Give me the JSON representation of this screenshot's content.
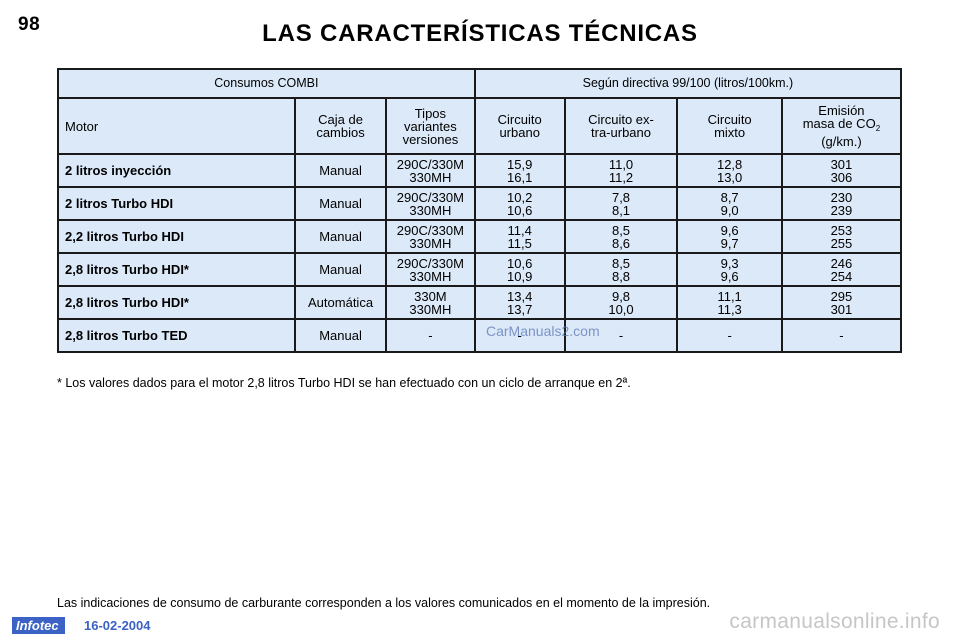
{
  "page": {
    "number": "98",
    "title": "LAS CARACTERÍSTICAS TÉCNICAS"
  },
  "table": {
    "group_left": "Consumos COMBI",
    "group_right": "Según directiva 99/100 (litros/100km.)",
    "columns": {
      "motor": "Motor",
      "caja": "Caja de\ncambios",
      "tipos": "Tipos\nvariantes\nversiones",
      "urbano": "Circuito\nurbano",
      "extra": "Circuito ex-\ntra-urbano",
      "mixto": "Circuito\nmixto",
      "emision_line1": "Emisión",
      "emision_line2": "masa de CO",
      "emision_sub": "2",
      "emision_line3": "(g/km.)"
    },
    "rows": [
      {
        "motor": "2 litros inyección",
        "caja": "Manual",
        "tipos": "290C/330M\n330MH",
        "urbano": "15,9\n16,1",
        "extra": "11,0\n11,2",
        "mixto": "12,8\n13,0",
        "emision": "301\n306"
      },
      {
        "motor": "2 litros Turbo HDI",
        "caja": "Manual",
        "tipos": "290C/330M\n330MH",
        "urbano": "10,2\n10,6",
        "extra": "7,8\n8,1",
        "mixto": "8,7\n9,0",
        "emision": "230\n239"
      },
      {
        "motor": "2,2 litros Turbo HDI",
        "caja": "Manual",
        "tipos": "290C/330M\n330MH",
        "urbano": "11,4\n11,5",
        "extra": "8,5\n8,6",
        "mixto": "9,6\n9,7",
        "emision": "253\n255"
      },
      {
        "motor": "2,8 litros Turbo HDI*",
        "caja": "Manual",
        "tipos": "290C/330M\n330MH",
        "urbano": "10,6\n10,9",
        "extra": "8,5\n8,8",
        "mixto": "9,3\n9,6",
        "emision": "246\n254"
      },
      {
        "motor": "2,8 litros Turbo HDI*",
        "caja": "Automática",
        "tipos": "330M\n330MH",
        "urbano": "13,4\n13,7",
        "extra": "9,8\n10,0",
        "mixto": "11,1\n11,3",
        "emision": "295\n301"
      },
      {
        "motor": "2,8 litros Turbo TED",
        "caja": "Manual",
        "tipos": "-",
        "urbano": "-",
        "extra": "-",
        "mixto": "-",
        "emision": "-"
      }
    ]
  },
  "footnote": "* Los valores dados para el motor 2,8 litros Turbo HDI se han efectuado con un ciclo de arranque en 2ª.",
  "bottom_note": "Las indicaciones de consumo de carburante corresponden a los valores comunicados en el momento de la impresión.",
  "watermark_center": "CarManuals2.com",
  "watermark_corner": "carmanualsonline.info",
  "footer": {
    "logo": "Infotec",
    "date": "16-02-2004"
  },
  "colors": {
    "table_fill": "#dce9f8",
    "border": "#1a1a1a",
    "footer_blue": "#3b62c4"
  }
}
